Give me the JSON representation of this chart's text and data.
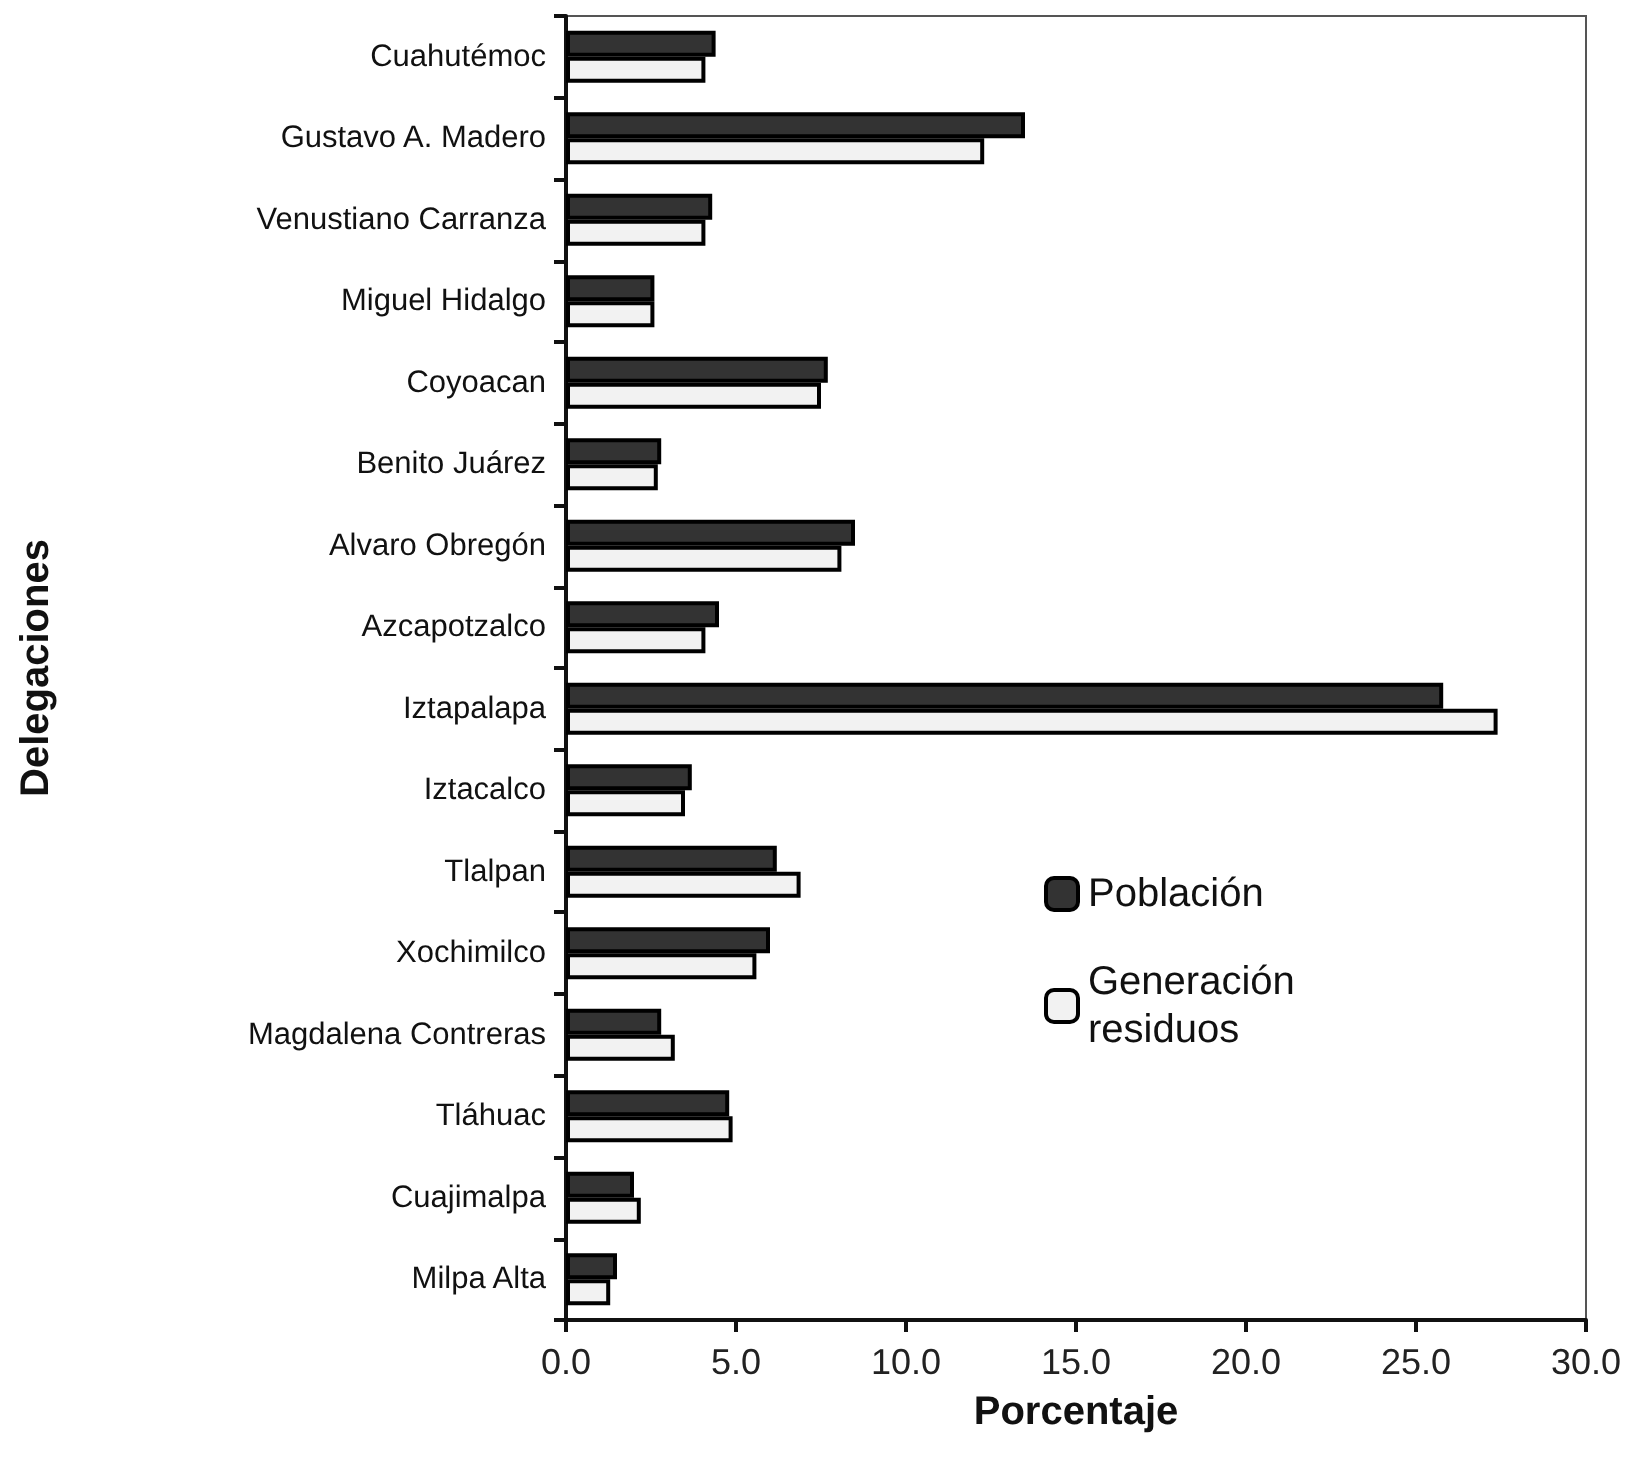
{
  "chart_data": {
    "type": "bar",
    "orientation": "horizontal",
    "xlabel": "Porcentaje",
    "ylabel": "Delegaciones",
    "categories": [
      "Cuahutémoc",
      "Gustavo A. Madero",
      "Venustiano Carranza",
      "Miguel Hidalgo",
      "Coyoacan",
      "Benito Juárez",
      "Alvaro Obregón",
      "Azcapotzalco",
      "Iztapalapa",
      "Iztacalco",
      "Tlalpan",
      "Xochimilco",
      "Magdalena Contreras",
      "Tláhuac",
      "Cuajimalpa",
      "Milpa Alta"
    ],
    "series": [
      {
        "name": "Población",
        "color": "#333333",
        "values": [
          4.4,
          13.5,
          4.3,
          2.6,
          7.7,
          2.8,
          8.5,
          4.5,
          25.8,
          3.7,
          6.2,
          6.0,
          2.8,
          4.8,
          2.0,
          1.5
        ]
      },
      {
        "name": "Generación residuos",
        "color": "#f2f2f2",
        "values": [
          4.1,
          12.3,
          4.1,
          2.6,
          7.5,
          2.7,
          8.1,
          4.1,
          27.4,
          3.5,
          6.9,
          5.6,
          3.2,
          4.9,
          2.2,
          1.3
        ]
      }
    ],
    "xlim": [
      0,
      30
    ],
    "xticks": [
      {
        "value": 0,
        "label": "0.0"
      },
      {
        "value": 5,
        "label": "5.0"
      },
      {
        "value": 10,
        "label": "10.0"
      },
      {
        "value": 15,
        "label": "15.0"
      },
      {
        "value": 20,
        "label": "20.0"
      },
      {
        "value": 25,
        "label": "25.0"
      },
      {
        "value": 30,
        "label": "30.0"
      }
    ],
    "grid": false,
    "legend": "right"
  }
}
